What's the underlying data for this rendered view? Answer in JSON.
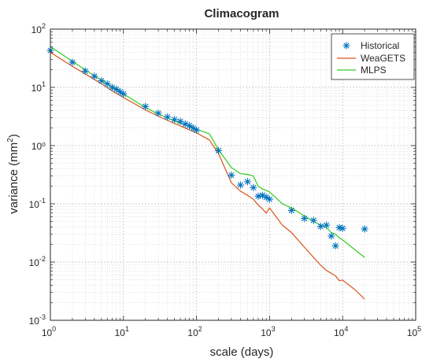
{
  "chart_data": {
    "type": "line",
    "title": "Climacogram",
    "xlabel": "scale (days)",
    "ylabel_main": "variance (mm",
    "ylabel_sup": "2",
    "ylabel_close": ")",
    "x_scale": "log",
    "y_scale": "log",
    "xlim": [
      1,
      100000
    ],
    "ylim": [
      0.001,
      100
    ],
    "grid": true,
    "legend_position": "top-right",
    "x_ticks": [
      {
        "value": 1,
        "base": "10",
        "exp": "0"
      },
      {
        "value": 10,
        "base": "10",
        "exp": "1"
      },
      {
        "value": 100,
        "base": "10",
        "exp": "2"
      },
      {
        "value": 1000,
        "base": "10",
        "exp": "3"
      },
      {
        "value": 10000,
        "base": "10",
        "exp": "4"
      },
      {
        "value": 100000,
        "base": "10",
        "exp": "5"
      }
    ],
    "y_ticks": [
      {
        "value": 0.001,
        "base": "10",
        "exp": "-3"
      },
      {
        "value": 0.01,
        "base": "10",
        "exp": "-2"
      },
      {
        "value": 0.1,
        "base": "10",
        "exp": "-1"
      },
      {
        "value": 1,
        "label": "10",
        "plain": "10⁰"
      },
      {
        "value": 10,
        "base": "10",
        "exp": "1"
      },
      {
        "value": 100,
        "base": "10",
        "exp": "2"
      }
    ],
    "series": [
      {
        "name": "Historical",
        "style": "marker",
        "marker": "asterisk",
        "color": "#0072BD",
        "x": [
          1,
          2,
          3,
          4,
          5,
          6,
          7,
          8,
          9,
          10,
          20,
          30,
          40,
          50,
          60,
          70,
          80,
          90,
          100,
          200,
          300,
          400,
          500,
          600,
          700,
          800,
          900,
          1000,
          2000,
          3000,
          4000,
          5000,
          6000,
          7000,
          8000,
          9000,
          10000,
          20000
        ],
        "y": [
          43,
          27,
          19,
          15.5,
          13,
          11.5,
          10,
          9.3,
          8.4,
          7.7,
          4.7,
          3.6,
          3.1,
          2.8,
          2.6,
          2.35,
          2.2,
          2.0,
          1.85,
          0.82,
          0.31,
          0.21,
          0.24,
          0.19,
          0.135,
          0.14,
          0.13,
          0.12,
          0.077,
          0.056,
          0.052,
          0.041,
          0.043,
          0.028,
          0.019,
          0.039,
          0.038,
          0.037
        ]
      },
      {
        "name": "WeaGETS",
        "style": "line",
        "color": "#D95319",
        "x": [
          1,
          2,
          3,
          5,
          7,
          10,
          20,
          30,
          50,
          70,
          100,
          150,
          200,
          300,
          400,
          500,
          600,
          700,
          800,
          900,
          1000,
          1500,
          2000,
          3000,
          4000,
          5000,
          6000,
          7000,
          8000,
          9000,
          10000,
          15000,
          20000
        ],
        "y": [
          40,
          23,
          17,
          11.5,
          8.7,
          6.7,
          4.1,
          3.2,
          2.4,
          2.0,
          1.65,
          1.25,
          0.73,
          0.23,
          0.165,
          0.14,
          0.12,
          0.095,
          0.082,
          0.069,
          0.085,
          0.043,
          0.032,
          0.018,
          0.012,
          0.0088,
          0.0072,
          0.0064,
          0.0058,
          0.0048,
          0.0049,
          0.0033,
          0.0023
        ]
      },
      {
        "name": "MLPS",
        "style": "line",
        "color": "#33CC22",
        "x": [
          1,
          2,
          3,
          5,
          7,
          10,
          20,
          30,
          50,
          70,
          100,
          150,
          200,
          300,
          400,
          500,
          600,
          700,
          800,
          900,
          1000,
          1500,
          2000,
          3000,
          4000,
          5000,
          6000,
          7000,
          8000,
          9000,
          10000,
          15000,
          20000
        ],
        "y": [
          50,
          28,
          20,
          13.3,
          10.2,
          7.7,
          4.5,
          3.5,
          2.65,
          2.25,
          1.9,
          1.6,
          0.85,
          0.42,
          0.33,
          0.32,
          0.3,
          0.2,
          0.18,
          0.17,
          0.16,
          0.1,
          0.085,
          0.062,
          0.05,
          0.043,
          0.039,
          0.032,
          0.03,
          0.026,
          0.024,
          0.016,
          0.012
        ]
      }
    ]
  }
}
